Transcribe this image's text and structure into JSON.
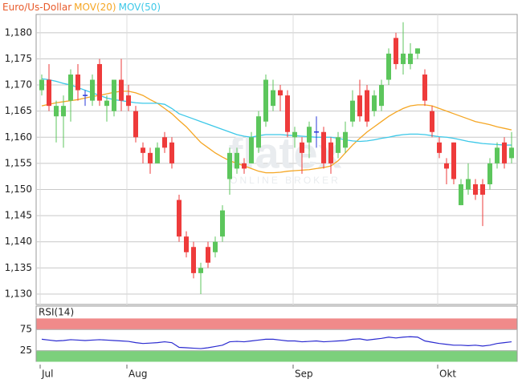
{
  "chart_data": [
    {
      "type": "candlestick",
      "categories": [
        "Jul",
        null,
        null,
        null,
        null,
        null,
        null,
        null,
        null,
        null,
        null,
        null,
        "Aug",
        null,
        null,
        null,
        null,
        null,
        null,
        null,
        null,
        null,
        null,
        null,
        null,
        null,
        null,
        null,
        null,
        null,
        null,
        null,
        null,
        null,
        null,
        "Sep",
        null,
        null,
        null,
        null,
        null,
        null,
        null,
        null,
        null,
        null,
        null,
        null,
        null,
        null,
        null,
        null,
        null,
        null,
        null,
        "Okt",
        null,
        null,
        null,
        null,
        null,
        null,
        null,
        null,
        null,
        null
      ],
      "series": [
        {
          "name": "Euro/Us-Dollar",
          "color": "#e85a2a",
          "up_color": "#5cc65c",
          "down_color": "#ee3b3b",
          "doji_color": "#2a3ad8",
          "open": [
            1.169,
            1.171,
            1.164,
            1.164,
            1.167,
            1.172,
            1.168,
            1.167,
            1.174,
            1.166,
            1.165,
            1.171,
            1.168,
            1.165,
            1.158,
            1.157,
            1.155,
            1.16,
            1.159,
            1.148,
            1.141,
            1.139,
            1.134,
            1.139,
            1.138,
            1.141,
            1.152,
            1.154,
            1.155,
            1.155,
            1.158,
            1.163,
            1.166,
            1.169,
            1.168,
            1.16,
            1.159,
            1.159,
            1.161,
            1.161,
            1.159,
            1.157,
            1.158,
            1.163,
            1.168,
            1.169,
            1.165,
            1.166,
            1.171,
            1.179,
            1.174,
            1.174,
            1.176,
            1.172,
            1.165,
            1.159,
            1.155,
            1.159,
            1.147,
            1.15,
            1.151,
            1.151,
            1.151,
            1.155,
            1.159,
            1.156
          ],
          "high": [
            1.172,
            1.174,
            1.167,
            1.168,
            1.173,
            1.174,
            1.169,
            1.172,
            1.175,
            1.168,
            1.171,
            1.175,
            1.17,
            1.166,
            1.159,
            1.158,
            1.159,
            1.161,
            1.16,
            1.149,
            1.142,
            1.14,
            1.136,
            1.14,
            1.141,
            1.147,
            1.158,
            1.158,
            1.156,
            1.161,
            1.165,
            1.172,
            1.171,
            1.17,
            1.169,
            1.162,
            1.16,
            1.163,
            1.164,
            1.162,
            1.16,
            1.161,
            1.163,
            1.169,
            1.171,
            1.17,
            1.169,
            1.171,
            1.177,
            1.18,
            1.182,
            1.178,
            1.177,
            1.173,
            1.166,
            1.16,
            1.156,
            1.159,
            1.152,
            1.155,
            1.152,
            1.152,
            1.156,
            1.159,
            1.16,
            1.161
          ],
          "low": [
            1.168,
            1.165,
            1.159,
            1.158,
            1.163,
            1.167,
            1.166,
            1.166,
            1.166,
            1.163,
            1.164,
            1.165,
            1.165,
            1.159,
            1.155,
            1.153,
            1.155,
            1.157,
            1.154,
            1.14,
            1.137,
            1.133,
            1.13,
            1.135,
            1.137,
            1.14,
            1.149,
            1.153,
            1.153,
            1.155,
            1.157,
            1.162,
            1.165,
            1.165,
            1.16,
            1.158,
            1.153,
            1.156,
            1.158,
            1.154,
            1.153,
            1.156,
            1.157,
            1.162,
            1.163,
            1.162,
            1.164,
            1.165,
            1.17,
            1.173,
            1.172,
            1.173,
            1.175,
            1.166,
            1.16,
            1.156,
            1.151,
            1.151,
            1.147,
            1.149,
            1.148,
            1.143,
            1.15,
            1.154,
            1.154,
            1.155
          ],
          "close": [
            1.171,
            1.166,
            1.166,
            1.166,
            1.172,
            1.169,
            1.168,
            1.171,
            1.167,
            1.167,
            1.171,
            1.167,
            1.166,
            1.16,
            1.157,
            1.155,
            1.158,
            1.158,
            1.155,
            1.141,
            1.138,
            1.134,
            1.135,
            1.136,
            1.14,
            1.146,
            1.157,
            1.157,
            1.154,
            1.16,
            1.164,
            1.171,
            1.169,
            1.168,
            1.161,
            1.161,
            1.157,
            1.162,
            1.161,
            1.155,
            1.155,
            1.16,
            1.161,
            1.167,
            1.164,
            1.163,
            1.168,
            1.17,
            1.176,
            1.174,
            1.176,
            1.176,
            1.177,
            1.167,
            1.161,
            1.157,
            1.154,
            1.152,
            1.151,
            1.152,
            1.149,
            1.149,
            1.155,
            1.158,
            1.155,
            1.158
          ]
        },
        {
          "name": "MOV(20)",
          "color": "#f5a623",
          "values": [
            1.166,
            1.1663,
            1.1666,
            1.1668,
            1.167,
            1.1672,
            1.1675,
            1.1678,
            1.168,
            1.1683,
            1.1686,
            1.1688,
            1.1688,
            1.1685,
            1.168,
            1.1672,
            1.1665,
            1.1655,
            1.1645,
            1.1632,
            1.162,
            1.1605,
            1.159,
            1.158,
            1.157,
            1.1562,
            1.1555,
            1.155,
            1.1545,
            1.154,
            1.1535,
            1.1532,
            1.1532,
            1.1533,
            1.1535,
            1.1536,
            1.1537,
            1.1538,
            1.154,
            1.1542,
            1.1545,
            1.1555,
            1.157,
            1.1585,
            1.1598,
            1.161,
            1.162,
            1.163,
            1.164,
            1.1648,
            1.1655,
            1.166,
            1.1662,
            1.1662,
            1.166,
            1.1655,
            1.165,
            1.1645,
            1.164,
            1.1635,
            1.163,
            1.1627,
            1.1624,
            1.162,
            1.1617,
            1.1614
          ]
        },
        {
          "name": "MOV(50)",
          "color": "#3cc8e8",
          "values": [
            1.1712,
            1.171,
            1.1707,
            1.1703,
            1.17,
            1.1695,
            1.169,
            1.1685,
            1.168,
            1.1675,
            1.1672,
            1.167,
            1.1668,
            1.1666,
            1.1665,
            1.1665,
            1.1665,
            1.1663,
            1.1655,
            1.1645,
            1.164,
            1.1635,
            1.163,
            1.1625,
            1.162,
            1.1615,
            1.161,
            1.1605,
            1.1602,
            1.16,
            1.1603,
            1.1605,
            1.1605,
            1.1605,
            1.1604,
            1.1603,
            1.1602,
            1.1601,
            1.16,
            1.16,
            1.16,
            1.1598,
            1.1595,
            1.1593,
            1.1592,
            1.1593,
            1.1595,
            1.1598,
            1.16,
            1.1603,
            1.1605,
            1.1606,
            1.1606,
            1.1605,
            1.1603,
            1.1601,
            1.16,
            1.1598,
            1.1595,
            1.1592,
            1.159,
            1.1588,
            1.1587,
            1.1586,
            1.1585,
            1.1585
          ]
        }
      ],
      "ylim": [
        1.128,
        1.1835
      ],
      "yticks": [
        {
          "value": 1.13,
          "label": "1,130"
        },
        {
          "value": 1.135,
          "label": "1,135"
        },
        {
          "value": 1.14,
          "label": "1,140"
        },
        {
          "value": 1.145,
          "label": "1,145"
        },
        {
          "value": 1.15,
          "label": "1,150"
        },
        {
          "value": 1.155,
          "label": "1,155"
        },
        {
          "value": 1.16,
          "label": "1,160"
        },
        {
          "value": 1.165,
          "label": "1,165"
        },
        {
          "value": 1.17,
          "label": "1,170"
        },
        {
          "value": 1.175,
          "label": "1,175"
        },
        {
          "value": 1.18,
          "label": "1,180"
        }
      ],
      "grid": true,
      "watermark": {
        "brand": "flatex",
        "tagline": "ONLINE BROKER"
      }
    },
    {
      "type": "line",
      "series": [
        {
          "name": "RSI(14)",
          "color": "#2a2ad0",
          "values": [
            52,
            50,
            48,
            49,
            51,
            50,
            49,
            50,
            51,
            50,
            49,
            48,
            47,
            44,
            42,
            43,
            44,
            46,
            44,
            33,
            32,
            31,
            30,
            32,
            35,
            38,
            46,
            47,
            46,
            48,
            50,
            52,
            52,
            50,
            48,
            48,
            46,
            47,
            48,
            46,
            47,
            48,
            49,
            52,
            53,
            50,
            52,
            54,
            57,
            55,
            57,
            58,
            57,
            48,
            45,
            42,
            40,
            38,
            38,
            37,
            38,
            36,
            38,
            42,
            44,
            46
          ]
        }
      ],
      "ylim": [
        0,
        130
      ],
      "yticks": [
        25,
        75
      ],
      "bands": [
        {
          "from": 75,
          "to": 100,
          "color": "#f08a8a"
        },
        {
          "from": 0,
          "to": 25,
          "color": "#7cd07c"
        }
      ]
    }
  ]
}
